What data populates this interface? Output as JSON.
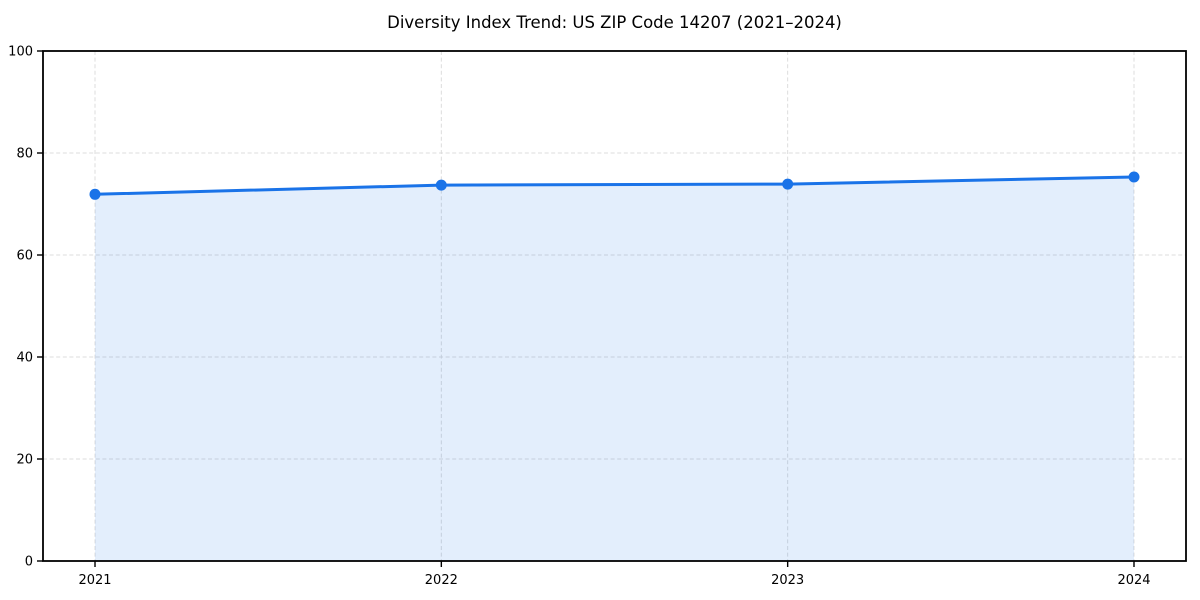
{
  "figure": {
    "background": "#ffffff"
  },
  "chart_data": {
    "type": "area",
    "title": "Diversity Index Trend: US ZIP Code 14207 (2021–2024)",
    "x": [
      2021,
      2022,
      2023,
      2024
    ],
    "x_tick_labels": [
      "2021",
      "2022",
      "2023",
      "2024"
    ],
    "series": [
      {
        "name": "Diversity Index",
        "values": [
          71.9,
          73.7,
          73.9,
          75.3
        ]
      }
    ],
    "xlabel": "",
    "ylabel": "",
    "ylim": [
      0,
      100
    ],
    "yticks": [
      0,
      20,
      40,
      60,
      80,
      100
    ],
    "grid": true,
    "grid_style": "dashed",
    "legend_position": "none",
    "marker": "circle",
    "area_fill": true,
    "colors": {
      "line": "#1a73e8",
      "marker": "#1a73e8",
      "area_fill": "rgba(26,115,232,0.12)",
      "grid": "#d9d9d9",
      "axis_frame": "#000000",
      "tick_text": "#000000",
      "title_text": "#000000"
    }
  }
}
